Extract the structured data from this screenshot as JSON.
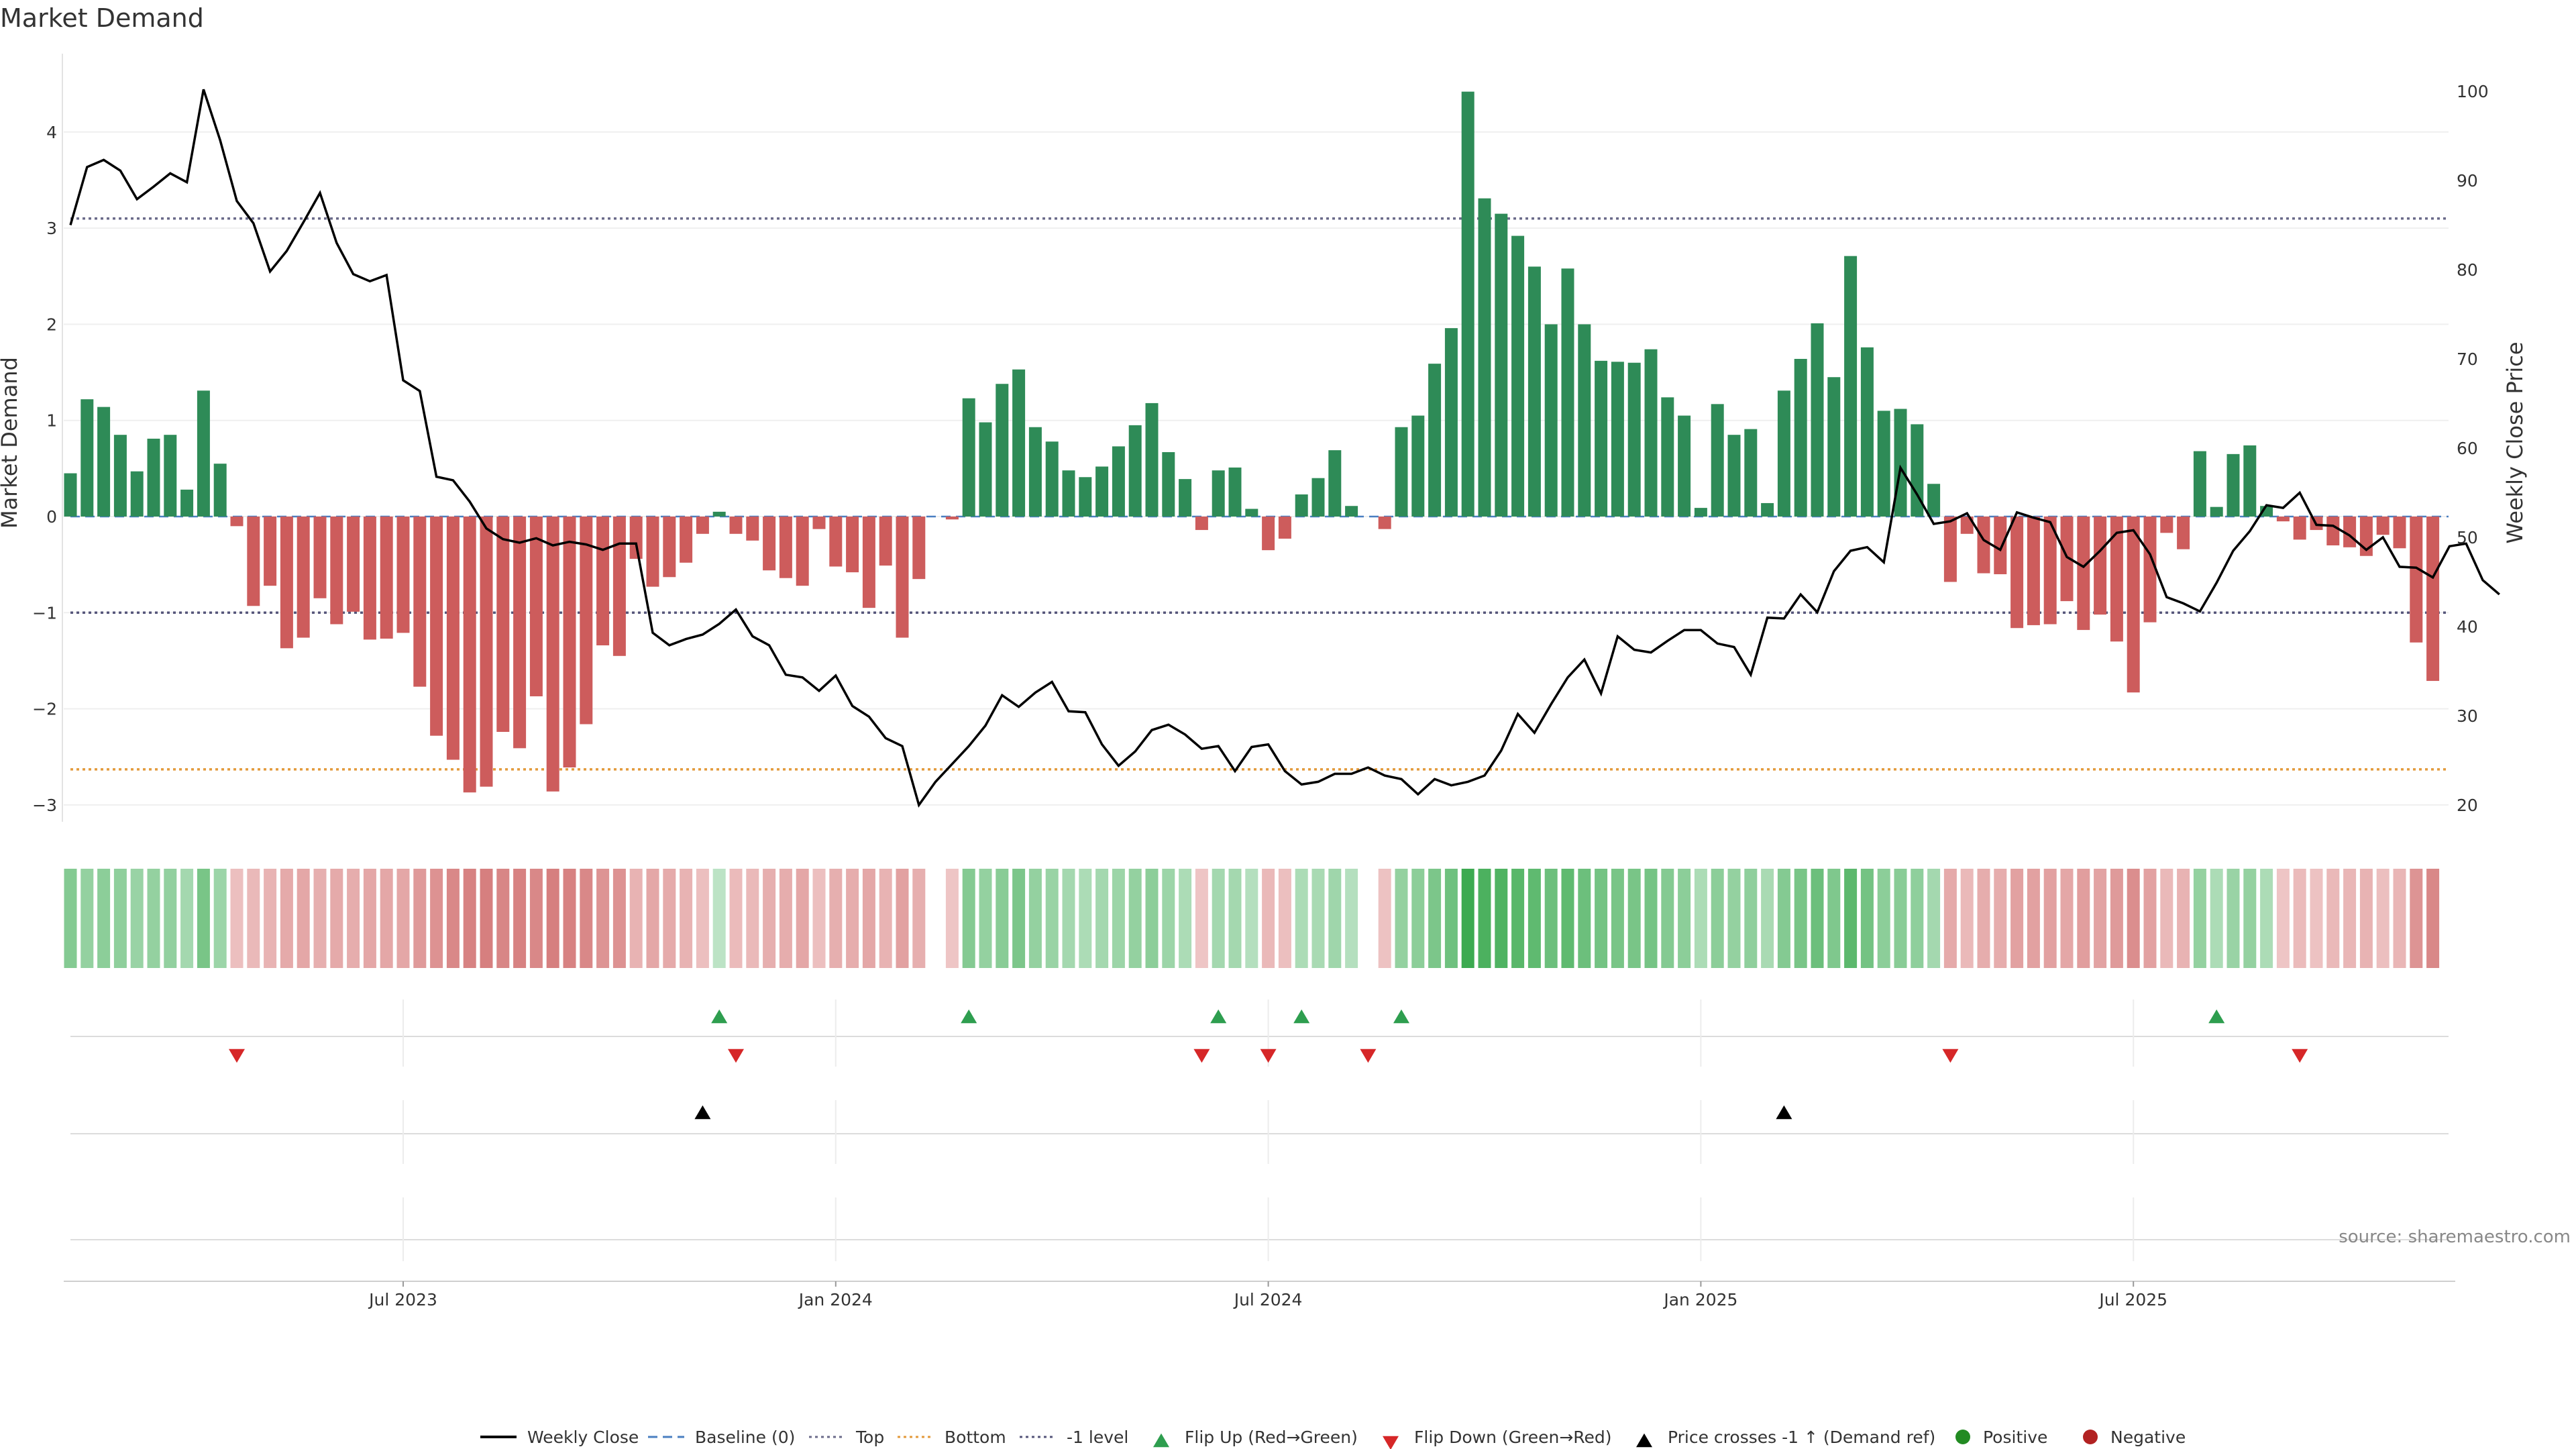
{
  "chart_data": {
    "type": "bar",
    "title": "Market Demand",
    "ylabel": "Market Demand",
    "y2label": "Weekly Close Price",
    "ylim": [
      -3.3,
      4.6
    ],
    "y2lim": [
      17.6,
      103.7
    ],
    "yticks": [
      -3,
      -2,
      -1,
      0,
      1,
      2,
      3,
      4
    ],
    "y2ticks": [
      20,
      30,
      40,
      50,
      60,
      70,
      80,
      90,
      100
    ],
    "xticks": [
      {
        "label": "Jul 2023",
        "index": 20
      },
      {
        "label": "Jan 2024",
        "index": 46
      },
      {
        "label": "Jul 2024",
        "index": 72
      },
      {
        "label": "Jan 2025",
        "index": 98
      },
      {
        "label": "Jul 2025",
        "index": 124
      }
    ],
    "levels": {
      "top": 3.1,
      "bottom": -2.63,
      "minus_one": -1
    },
    "colors": {
      "positive": "#2e8b57",
      "negative": "#cd5c5c",
      "price": "#000000",
      "top": "#6b6b8a",
      "bottom": "#e39a3b",
      "minus_one": "#55557a",
      "baseline": "#4a7fc1",
      "flip_up": "#2e9e4f",
      "flip_down": "#d62728",
      "cross": "#000000",
      "pos_dot": "#228b22",
      "neg_dot": "#b22222"
    },
    "demand": [
      0.45,
      1.22,
      1.14,
      0.85,
      0.47,
      0.81,
      0.85,
      0.28,
      1.31,
      0.55,
      -0.1,
      -0.93,
      -0.72,
      -1.37,
      -1.26,
      -0.85,
      -1.12,
      -0.99,
      -1.28,
      -1.27,
      -1.21,
      -1.77,
      -2.28,
      -2.53,
      -2.87,
      -2.81,
      -2.24,
      -2.41,
      -1.87,
      -2.86,
      -2.61,
      -2.16,
      -1.34,
      -1.45,
      -0.44,
      -0.73,
      -0.63,
      -0.48,
      -0.18,
      0.05,
      -0.18,
      -0.25,
      -0.56,
      -0.64,
      -0.72,
      -0.13,
      -0.52,
      -0.58,
      -0.95,
      -0.51,
      -1.26,
      -0.65,
      0,
      -0.03,
      1.23,
      0.98,
      1.38,
      1.53,
      0.93,
      0.78,
      0.48,
      0.41,
      0.52,
      0.73,
      0.95,
      1.18,
      0.67,
      0.39,
      -0.14,
      0.48,
      0.51,
      0.08,
      -0.35,
      -0.23,
      0.23,
      0.4,
      0.69,
      0.11,
      0,
      -0.13,
      0.93,
      1.05,
      1.59,
      1.96,
      4.42,
      3.31,
      3.15,
      2.92,
      2.6,
      2.0,
      2.58,
      2.0,
      1.62,
      1.61,
      1.6,
      1.74,
      1.24,
      1.05,
      0.09,
      1.17,
      0.85,
      0.91,
      0.14,
      1.31,
      1.64,
      2.01,
      1.45,
      2.71,
      1.76,
      1.1,
      1.12,
      0.96,
      0.34,
      -0.68,
      -0.18,
      -0.59,
      -0.6,
      -1.16,
      -1.13,
      -1.12,
      -0.88,
      -1.18,
      -1.02,
      -1.3,
      -1.83,
      -1.1,
      -0.17,
      -0.34,
      0.68,
      0.1,
      0.65,
      0.74,
      0.11,
      -0.05,
      -0.24,
      -0.14,
      -0.3,
      -0.32,
      -0.41,
      -0.19,
      -0.33,
      -1.31,
      -1.71
    ],
    "price": [
      85,
      91.5,
      92.3,
      91.1,
      87.9,
      89.3,
      90.8,
      89.8,
      100.2,
      94.5,
      87.7,
      85.2,
      79.8,
      82.1,
      85.3,
      88.6,
      83,
      79.5,
      78.7,
      79.4,
      67.6,
      66.4,
      56.8,
      56.4,
      54,
      51,
      49.8,
      49.4,
      49.9,
      49.1,
      49.5,
      49.2,
      48.6,
      49.3,
      49.3,
      39.3,
      37.9,
      38.6,
      39.1,
      40.3,
      41.9,
      38.9,
      37.9,
      34.6,
      34.3,
      32.8,
      34.5,
      31.1,
      29.9,
      27.5,
      26.6,
      20,
      22.6,
      24.6,
      26.6,
      28.9,
      32.3,
      31,
      32.6,
      33.8,
      30.5,
      30.4,
      26.8,
      24.4,
      26,
      28.4,
      29,
      27.9,
      26.3,
      26.6,
      23.8,
      26.5,
      26.8,
      23.8,
      22.3,
      22.6,
      23.5,
      23.5,
      24.2,
      23.3,
      22.9,
      21.2,
      22.9,
      22.2,
      22.6,
      23.3,
      26.1,
      30.2,
      28.1,
      31.3,
      34.3,
      36.3,
      32.5,
      38.9,
      37.4,
      37.1,
      38.4,
      39.6,
      39.6,
      38.1,
      37.7,
      34.6,
      41,
      40.9,
      43.6,
      41.6,
      46.2,
      48.5,
      48.9,
      47.2,
      57.8,
      54.8,
      51.5,
      51.8,
      52.7,
      49.7,
      48.6,
      52.8,
      52.2,
      51.7,
      47.8,
      46.7,
      48.5,
      50.5,
      50.8,
      48.1,
      43.3,
      42.6,
      41.7,
      44.9,
      48.5,
      50.7,
      53.6,
      53.3,
      55,
      51.4,
      51.3,
      50.2,
      48.6,
      50,
      46.7,
      46.6,
      45.5,
      49,
      49.3,
      45.2,
      43.6
    ],
    "intensity": [
      0.55,
      0.45,
      0.5,
      0.48,
      0.42,
      0.45,
      0.46,
      0.35,
      0.62,
      0.4,
      0.25,
      0.3,
      0.35,
      0.42,
      0.45,
      0.38,
      0.42,
      0.4,
      0.45,
      0.45,
      0.45,
      0.55,
      0.62,
      0.7,
      0.75,
      0.78,
      0.72,
      0.75,
      0.7,
      0.78,
      0.75,
      0.7,
      0.6,
      0.62,
      0.35,
      0.45,
      0.42,
      0.35,
      0.25,
      0.2,
      0.28,
      0.3,
      0.38,
      0.4,
      0.45,
      0.25,
      0.38,
      0.4,
      0.45,
      0.35,
      0.5,
      0.38,
      0,
      0.2,
      0.55,
      0.45,
      0.52,
      0.6,
      0.45,
      0.42,
      0.35,
      0.3,
      0.35,
      0.4,
      0.45,
      0.5,
      0.4,
      0.3,
      0.2,
      0.35,
      0.35,
      0.25,
      0.3,
      0.25,
      0.3,
      0.32,
      0.38,
      0.25,
      0.2,
      0.22,
      0.45,
      0.5,
      0.6,
      0.68,
      1,
      0.9,
      0.88,
      0.82,
      0.78,
      0.7,
      0.78,
      0.7,
      0.65,
      0.62,
      0.62,
      0.64,
      0.55,
      0.5,
      0.3,
      0.5,
      0.45,
      0.48,
      0.32,
      0.55,
      0.62,
      0.7,
      0.58,
      0.8,
      0.65,
      0.5,
      0.52,
      0.48,
      0.35,
      0.42,
      0.3,
      0.4,
      0.4,
      0.5,
      0.5,
      0.5,
      0.45,
      0.52,
      0.48,
      0.55,
      0.65,
      0.5,
      0.3,
      0.35,
      0.45,
      0.3,
      0.42,
      0.45,
      0.3,
      0.2,
      0.28,
      0.22,
      0.3,
      0.32,
      0.35,
      0.25,
      0.32,
      0.6,
      0.7
    ],
    "flip_up": [
      39,
      54,
      69,
      74,
      80,
      129
    ],
    "flip_down": [
      10,
      40,
      68,
      72,
      78,
      113,
      134
    ],
    "price_cross": [
      38,
      103
    ],
    "legend": [
      "Weekly Close",
      "Baseline (0)",
      "Top",
      "Bottom",
      "-1 level",
      "Flip Up (Red→Green)",
      "Flip Down (Green→Red)",
      "Price crosses -1 ↑ (Demand ref)",
      "Positive",
      "Negative"
    ],
    "source": "source: sharemaestro.com"
  }
}
